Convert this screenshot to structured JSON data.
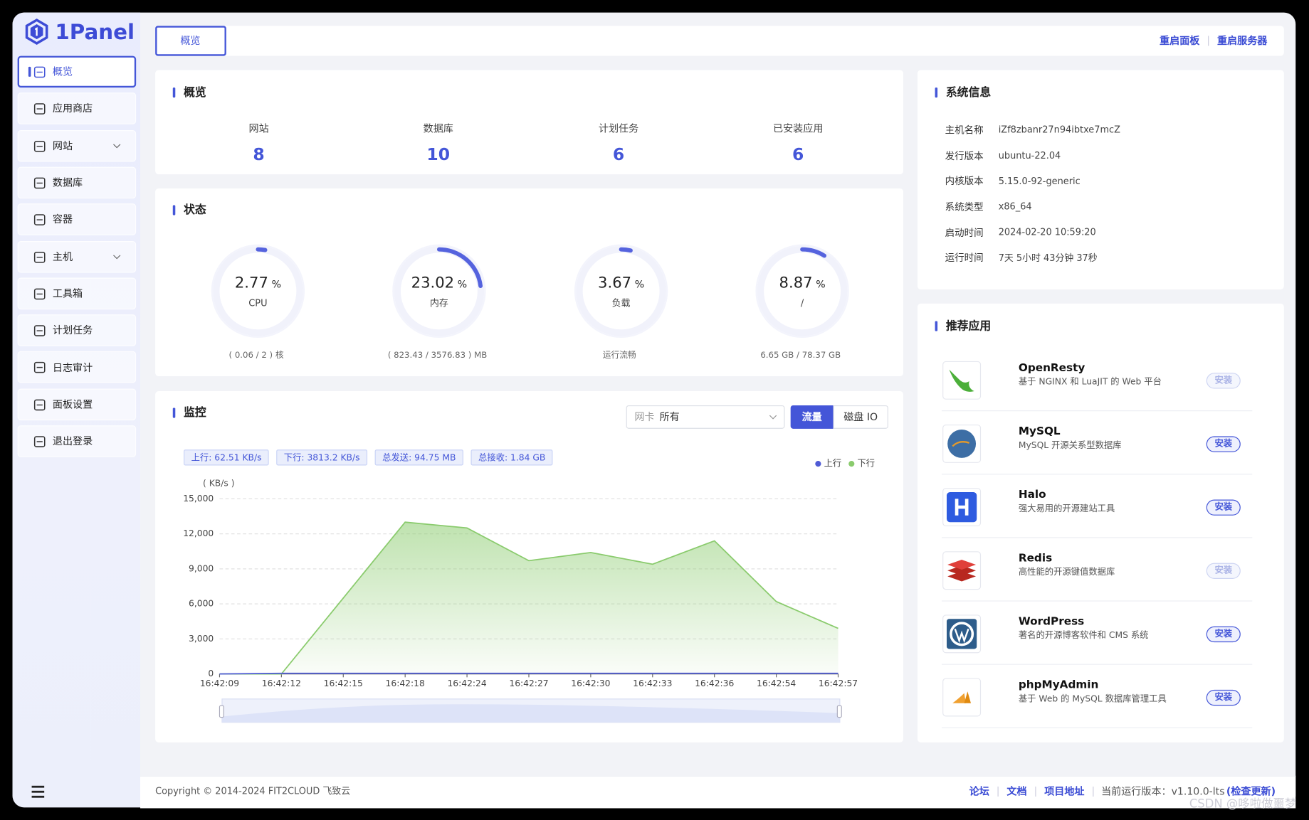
{
  "sidebar": {
    "logo": "1Panel",
    "menu": [
      {
        "label": "概览",
        "active": true
      },
      {
        "label": "应用商店"
      },
      {
        "label": "网站",
        "expandable": true
      },
      {
        "label": "数据库"
      },
      {
        "label": "容器"
      },
      {
        "label": "主机",
        "expandable": true
      },
      {
        "label": "工具箱"
      },
      {
        "label": "计划任务"
      },
      {
        "label": "日志审计"
      },
      {
        "label": "面板设置"
      },
      {
        "label": "退出登录"
      }
    ]
  },
  "header": {
    "tab": "概览",
    "actions": [
      "重启面板",
      "重启服务器"
    ]
  },
  "overview": {
    "title": "概览",
    "stats": [
      {
        "label": "网站",
        "value": 8
      },
      {
        "label": "数据库",
        "value": 10
      },
      {
        "label": "计划任务",
        "value": 6
      },
      {
        "label": "已安装应用",
        "value": 6
      }
    ]
  },
  "status": {
    "title": "状态",
    "gauges": [
      {
        "value": 2.77,
        "unit": "%",
        "label": "CPU",
        "detail": "( 0.06 / 2 ) 核"
      },
      {
        "value": 23.02,
        "unit": "%",
        "label": "内存",
        "detail": "( 823.43 / 3576.83 ) MB"
      },
      {
        "value": 3.67,
        "unit": "%",
        "label": "负载",
        "detail": "运行流畅"
      },
      {
        "value": 8.87,
        "unit": "%",
        "label": "/",
        "detail": "6.65 GB / 78.37 GB"
      }
    ]
  },
  "monitor": {
    "title": "监控",
    "nic_label": "网卡",
    "nic_value": "所有",
    "tabs": [
      {
        "label": "流量",
        "active": true
      },
      {
        "label": "磁盘 IO"
      }
    ],
    "tags": [
      "上行: 62.51 KB/s",
      "下行: 3813.2 KB/s",
      "总发送: 94.75 MB",
      "总接收: 1.84 GB"
    ],
    "chart_data": {
      "type": "area",
      "y_label": "( KB/s )",
      "x": [
        "16:42:09",
        "16:42:12",
        "16:42:15",
        "16:42:18",
        "16:42:24",
        "16:42:27",
        "16:42:30",
        "16:42:33",
        "16:42:36",
        "16:42:54",
        "16:42:57"
      ],
      "series": [
        {
          "name": "上行",
          "color": "#4f5bd5",
          "values": [
            0,
            60,
            60,
            60,
            60,
            60,
            60,
            60,
            60,
            60,
            60
          ]
        },
        {
          "name": "下行",
          "color": "#8acb6d",
          "values": [
            0,
            0,
            6500,
            13000,
            12500,
            9700,
            10400,
            9400,
            11400,
            6200,
            3900
          ]
        }
      ],
      "ylim": [
        0,
        15000
      ],
      "yticks": [
        0,
        {
          "value": 3000,
          "label": "3,000"
        },
        {
          "value": 6000,
          "label": "6,000"
        },
        {
          "value": 9000,
          "label": "9,000"
        },
        {
          "value": 12000,
          "label": "12,000"
        },
        {
          "value": 15000,
          "label": "15,000"
        }
      ],
      "grid": true,
      "legend": "top-right"
    }
  },
  "system": {
    "title": "系统信息",
    "rows": [
      [
        "主机名称",
        "iZf8zbanr27n94ibtxe7mcZ"
      ],
      [
        "发行版本",
        "ubuntu-22.04"
      ],
      [
        "内核版本",
        "5.15.0-92-generic"
      ],
      [
        "系统类型",
        "x86_64"
      ],
      [
        "启动时间",
        "2024-02-20 10:59:20"
      ],
      [
        "运行时间",
        "7天 5小时 43分钟 37秒"
      ]
    ]
  },
  "apps": {
    "title": "推荐应用",
    "items": [
      {
        "name": "OpenResty",
        "desc": "基于 NGINX 和 LuaJIT 的 Web 平台",
        "button": "安装",
        "disabled": true
      },
      {
        "name": "MySQL",
        "desc": "MySQL 开源关系型数据库",
        "button": "安装"
      },
      {
        "name": "Halo",
        "desc": "强大易用的开源建站工具",
        "button": "安装"
      },
      {
        "name": "Redis",
        "desc": "高性能的开源键值数据库",
        "button": "安装",
        "disabled": true
      },
      {
        "name": "WordPress",
        "desc": "著名的开源博客软件和 CMS 系统",
        "button": "安装"
      },
      {
        "name": "phpMyAdmin",
        "desc": "基于 Web 的 MySQL 数据库管理工具",
        "button": "安装"
      }
    ]
  },
  "footer": {
    "copyright": "Copyright © 2014-2024 FIT2CLOUD 飞致云",
    "links": [
      "论坛",
      "文档",
      "项目地址"
    ],
    "version": "当前运行版本：v1.10.0-lts",
    "check": "(检查更新)"
  },
  "watermark": "CSDN @哆啦做噩梦"
}
